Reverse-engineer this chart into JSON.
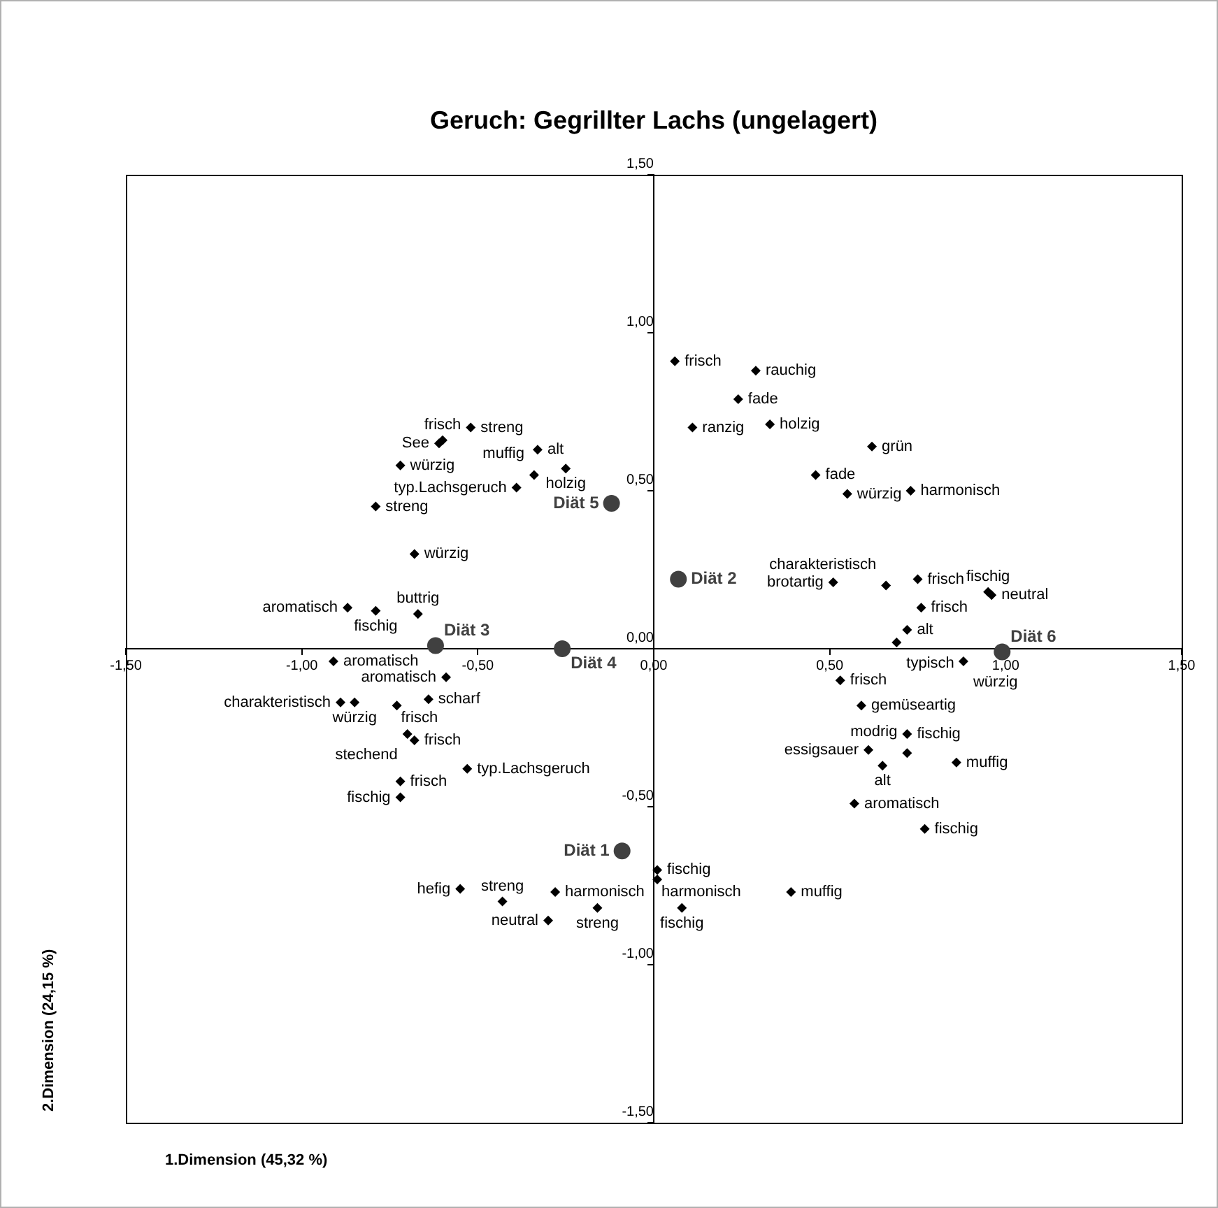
{
  "chart_data": {
    "type": "scatter",
    "title": "Geruch: Gegrillter Lachs (ungelagert)",
    "xlabel": "1.Dimension (45,32 %)",
    "ylabel": "2.Dimension (24,15 %)",
    "xlim": [
      -1.5,
      1.5
    ],
    "ylim": [
      -1.5,
      1.5
    ],
    "xticks": [
      {
        "value": -1.5,
        "label": "-1,50"
      },
      {
        "value": -1,
        "label": "-1,00"
      },
      {
        "value": -0.5,
        "label": "-0,50"
      },
      {
        "value": 0,
        "label": "0,00"
      },
      {
        "value": 0.5,
        "label": "0,50"
      },
      {
        "value": 1,
        "label": "1,00"
      },
      {
        "value": 1.5,
        "label": "1,50"
      }
    ],
    "yticks": [
      {
        "value": -1.5,
        "label": "-1,50"
      },
      {
        "value": -1,
        "label": "-1,00"
      },
      {
        "value": -0.5,
        "label": "-0,50"
      },
      {
        "value": 0,
        "label": "0,00"
      },
      {
        "value": 0.5,
        "label": "0,50"
      },
      {
        "value": 1,
        "label": "1,00"
      },
      {
        "value": 1.5,
        "label": "1,50"
      }
    ],
    "grid": false,
    "legend": false,
    "series": [
      {
        "color": "#000000",
        "marker": "diamond",
        "x": [
          -0.52,
          -0.6,
          -0.61,
          -0.72,
          -0.33,
          -0.34,
          -0.25,
          -0.39,
          -0.79,
          -0.68,
          -0.87,
          -0.67,
          -0.79,
          0.06,
          0.29,
          0.24,
          0.11,
          0.33,
          0.62,
          0.46,
          0.55,
          0.73,
          0.51,
          0.66,
          0.75,
          0.95,
          0.96,
          0.76,
          0.72,
          0.69,
          0.88,
          0.53,
          0.59,
          0.72,
          0.61,
          0.72,
          0.65,
          0.86,
          0.57,
          0.77,
          0.01,
          -0.28,
          0.01,
          0.39,
          0.08,
          -0.55,
          -0.43,
          -0.3,
          -0.16,
          -0.91,
          -0.64,
          -0.59,
          -0.89,
          -0.85,
          -0.73,
          -0.7,
          -0.68,
          -0.53,
          -0.72,
          -0.72
        ],
        "values": [
          0.7,
          0.66,
          0.65,
          0.58,
          0.63,
          0.55,
          0.57,
          0.51,
          0.45,
          0.3,
          0.13,
          0.11,
          0.12,
          0.91,
          0.88,
          0.79,
          0.7,
          0.71,
          0.64,
          0.55,
          0.49,
          0.5,
          0.21,
          0.2,
          0.22,
          0.18,
          0.17,
          0.13,
          0.06,
          0.02,
          -0.04,
          -0.1,
          -0.18,
          -0.27,
          -0.32,
          -0.33,
          -0.37,
          -0.36,
          -0.49,
          -0.57,
          -0.7,
          -0.77,
          -0.73,
          -0.77,
          -0.82,
          -0.76,
          -0.8,
          -0.86,
          -0.82,
          -0.04,
          -0.16,
          -0.09,
          -0.17,
          -0.17,
          -0.18,
          -0.27,
          -0.29,
          -0.38,
          -0.42,
          -0.47
        ]
      },
      {
        "name": "Diät 1",
        "color": "#404040",
        "marker": "circle",
        "x": [
          -0.09
        ],
        "values": [
          -0.64
        ]
      },
      {
        "name": "Diät 2",
        "color": "#404040",
        "marker": "circle",
        "x": [
          0.07
        ],
        "values": [
          0.22
        ]
      },
      {
        "name": "Diät 3",
        "color": "#404040",
        "marker": "circle",
        "x": [
          -0.62
        ],
        "values": [
          0.01
        ]
      },
      {
        "name": "Diät 4",
        "color": "#404040",
        "marker": "circle",
        "x": [
          -0.26
        ],
        "values": [
          0.0
        ]
      },
      {
        "name": "Diät 5",
        "color": "#404040",
        "marker": "circle",
        "x": [
          -0.12
        ],
        "values": [
          0.46
        ]
      },
      {
        "name": "Diät 6",
        "color": "#404040",
        "marker": "circle",
        "x": [
          0.99
        ],
        "values": [
          -0.01
        ]
      }
    ],
    "annotations": [
      {
        "text": "streng",
        "x": -0.52,
        "y": 0.7
      },
      {
        "text": "frisch",
        "x": -0.6,
        "y": 0.66
      },
      {
        "text": "See",
        "x": -0.61,
        "y": 0.65
      },
      {
        "text": "würzig",
        "x": -0.72,
        "y": 0.58
      },
      {
        "text": "alt",
        "x": -0.33,
        "y": 0.63
      },
      {
        "text": "muffig",
        "x": -0.34,
        "y": 0.55
      },
      {
        "text": "holzig",
        "x": -0.25,
        "y": 0.57
      },
      {
        "text": "typ.Lachsgeruch",
        "x": -0.39,
        "y": 0.51
      },
      {
        "text": "streng",
        "x": -0.79,
        "y": 0.45
      },
      {
        "text": "würzig",
        "x": -0.68,
        "y": 0.3
      },
      {
        "text": "aromatisch",
        "x": -0.87,
        "y": 0.13
      },
      {
        "text": "buttrig",
        "x": -0.67,
        "y": 0.11
      },
      {
        "text": "fischig",
        "x": -0.79,
        "y": 0.12
      },
      {
        "text": "frisch",
        "x": 0.06,
        "y": 0.91
      },
      {
        "text": "rauchig",
        "x": 0.29,
        "y": 0.88
      },
      {
        "text": "fade",
        "x": 0.24,
        "y": 0.79
      },
      {
        "text": "ranzig",
        "x": 0.11,
        "y": 0.7
      },
      {
        "text": "holzig",
        "x": 0.33,
        "y": 0.71
      },
      {
        "text": "grün",
        "x": 0.62,
        "y": 0.64
      },
      {
        "text": "fade",
        "x": 0.46,
        "y": 0.55
      },
      {
        "text": "würzig",
        "x": 0.55,
        "y": 0.49
      },
      {
        "text": "harmonisch",
        "x": 0.73,
        "y": 0.5
      },
      {
        "text": "brotartig",
        "x": 0.51,
        "y": 0.21
      },
      {
        "text": "charakteristisch",
        "x": 0.66,
        "y": 0.2
      },
      {
        "text": "frisch",
        "x": 0.75,
        "y": 0.22
      },
      {
        "text": "fischig",
        "x": 0.95,
        "y": 0.18
      },
      {
        "text": "neutral",
        "x": 0.96,
        "y": 0.17
      },
      {
        "text": "frisch",
        "x": 0.76,
        "y": 0.13
      },
      {
        "text": "alt",
        "x": 0.72,
        "y": 0.06
      },
      {
        "text": "typisch",
        "x": 0.69,
        "y": 0.02
      },
      {
        "text": "würzig",
        "x": 0.88,
        "y": -0.04
      },
      {
        "text": "frisch",
        "x": 0.53,
        "y": -0.1
      },
      {
        "text": "gemüseartig",
        "x": 0.59,
        "y": -0.18
      },
      {
        "text": "fischig",
        "x": 0.72,
        "y": -0.27
      },
      {
        "text": "essigsauer",
        "x": 0.61,
        "y": -0.32
      },
      {
        "text": "modrig",
        "x": 0.72,
        "y": -0.33
      },
      {
        "text": "alt",
        "x": 0.65,
        "y": -0.37
      },
      {
        "text": "muffig",
        "x": 0.86,
        "y": -0.36
      },
      {
        "text": "aromatisch",
        "x": 0.57,
        "y": -0.49
      },
      {
        "text": "fischig",
        "x": 0.77,
        "y": -0.57
      },
      {
        "text": "fischig",
        "x": 0.01,
        "y": -0.7
      },
      {
        "text": "harmonisch",
        "x": -0.28,
        "y": -0.77
      },
      {
        "text": "harmonisch",
        "x": 0.01,
        "y": -0.73
      },
      {
        "text": "muffig",
        "x": 0.39,
        "y": -0.77
      },
      {
        "text": "fischig",
        "x": 0.08,
        "y": -0.82
      },
      {
        "text": "hefig",
        "x": -0.55,
        "y": -0.76
      },
      {
        "text": "streng",
        "x": -0.43,
        "y": -0.8
      },
      {
        "text": "neutral",
        "x": -0.3,
        "y": -0.86
      },
      {
        "text": "streng",
        "x": -0.16,
        "y": -0.82
      },
      {
        "text": "aromatisch",
        "x": -0.91,
        "y": -0.04
      },
      {
        "text": "scharf",
        "x": -0.64,
        "y": -0.16
      },
      {
        "text": "aromatisch",
        "x": -0.59,
        "y": -0.09
      },
      {
        "text": "charakteristisch",
        "x": -0.89,
        "y": -0.17
      },
      {
        "text": "würzig",
        "x": -0.85,
        "y": -0.17
      },
      {
        "text": "frisch",
        "x": -0.73,
        "y": -0.18
      },
      {
        "text": "stechend",
        "x": -0.7,
        "y": -0.27
      },
      {
        "text": "frisch",
        "x": -0.68,
        "y": -0.29
      },
      {
        "text": "typ.Lachsgeruch",
        "x": -0.53,
        "y": -0.38
      },
      {
        "text": "frisch",
        "x": -0.72,
        "y": -0.42
      },
      {
        "text": "fischig",
        "x": -0.72,
        "y": -0.47
      }
    ]
  }
}
